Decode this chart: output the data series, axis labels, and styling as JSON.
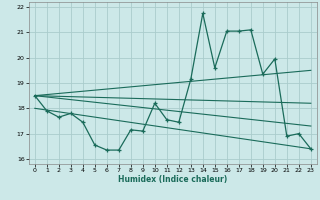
{
  "xlabel": "Humidex (Indice chaleur)",
  "background_color": "#cce8e8",
  "grid_color": "#aacccc",
  "line_color": "#1a6b5a",
  "xlim": [
    -0.5,
    23.5
  ],
  "ylim": [
    15.8,
    22.2
  ],
  "x_ticks": [
    0,
    1,
    2,
    3,
    4,
    5,
    6,
    7,
    8,
    9,
    10,
    11,
    12,
    13,
    14,
    15,
    16,
    17,
    18,
    19,
    20,
    21,
    22,
    23
  ],
  "y_ticks": [
    16,
    17,
    18,
    19,
    20,
    21,
    22
  ],
  "main_x": [
    0,
    1,
    2,
    3,
    4,
    5,
    6,
    7,
    8,
    9,
    10,
    11,
    12,
    13,
    14,
    15,
    16,
    17,
    18,
    19,
    20,
    21,
    22,
    23
  ],
  "main_y": [
    18.5,
    17.9,
    17.65,
    17.8,
    17.45,
    16.55,
    16.35,
    16.35,
    17.15,
    17.1,
    18.2,
    17.55,
    17.45,
    19.15,
    21.75,
    19.6,
    21.05,
    21.05,
    21.1,
    19.35,
    19.95,
    16.9,
    17.0,
    16.4
  ],
  "trend1_x": [
    0,
    23
  ],
  "trend1_y": [
    18.5,
    19.5
  ],
  "trend2_x": [
    0,
    23
  ],
  "trend2_y": [
    18.5,
    18.2
  ],
  "trend3_x": [
    0,
    23
  ],
  "trend3_y": [
    18.5,
    17.3
  ],
  "trend4_x": [
    0,
    23
  ],
  "trend4_y": [
    18.0,
    16.4
  ]
}
